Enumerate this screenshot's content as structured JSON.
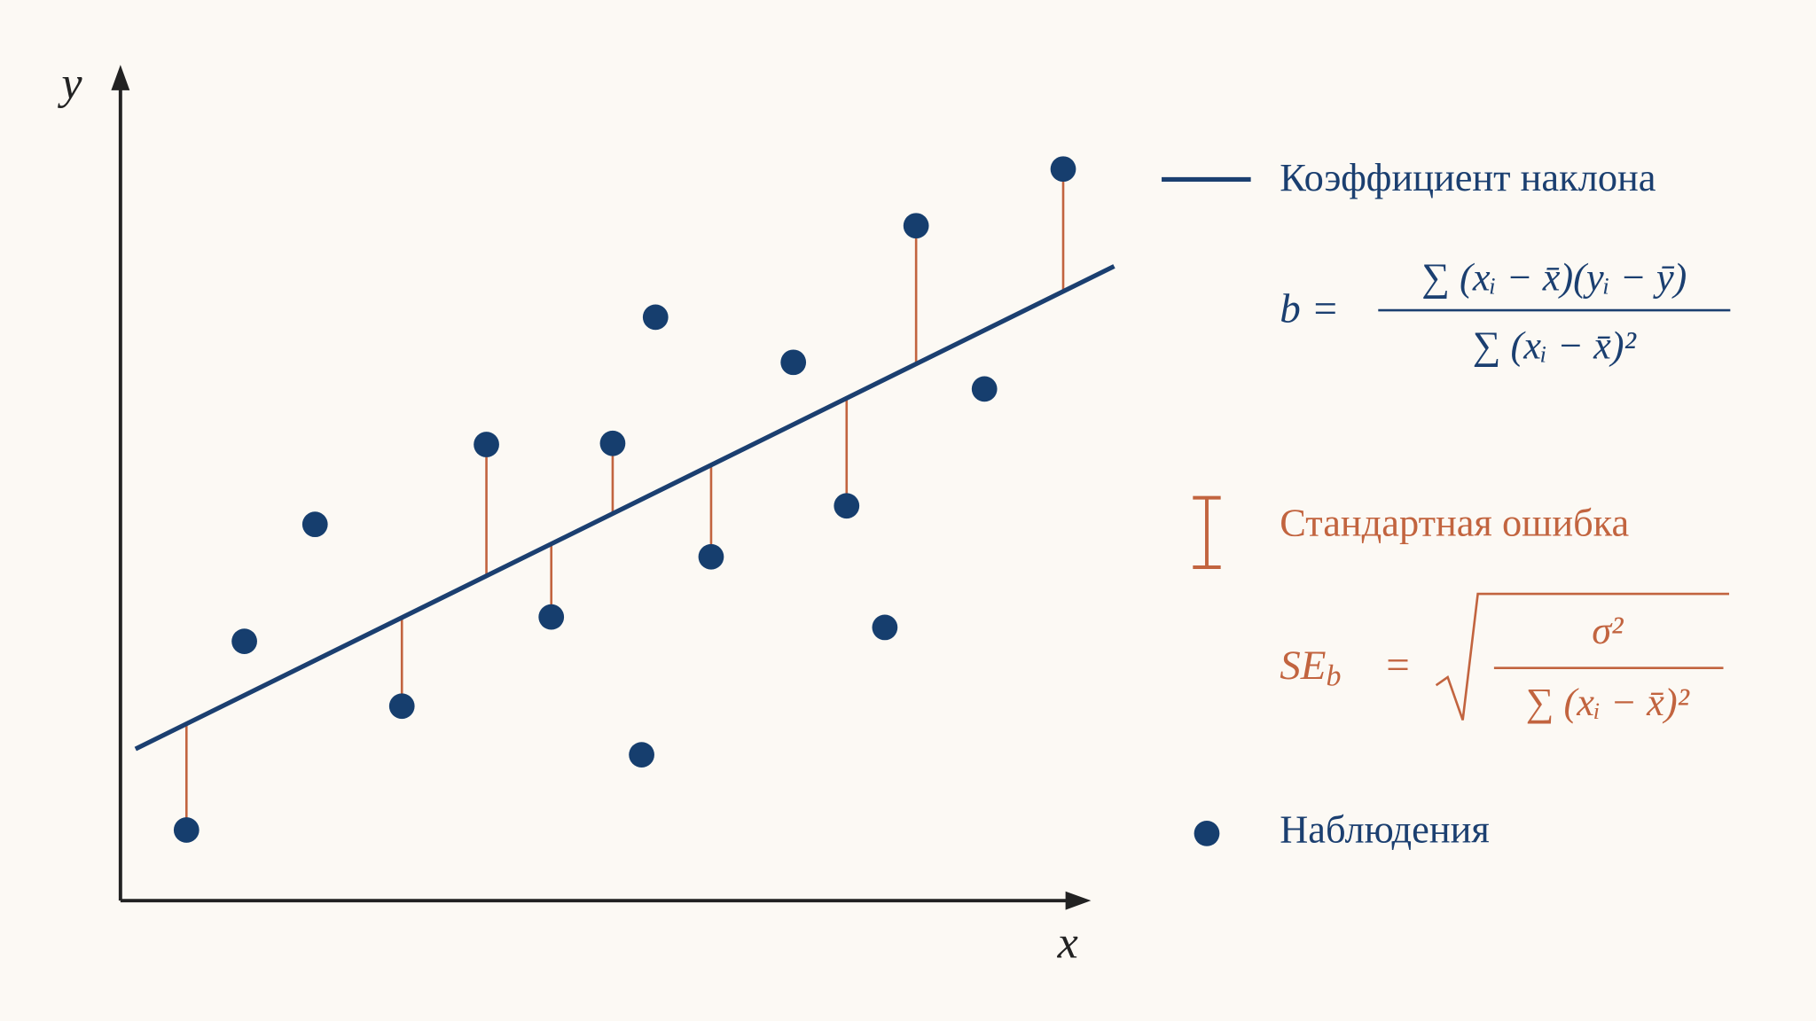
{
  "axes": {
    "y_label": "y",
    "x_label": "x"
  },
  "legend": {
    "slope": {
      "label": "Коэффициент наклона",
      "lhs": "b =",
      "numerator": "∑ (xᵢ − x̄)(yᵢ − ȳ)",
      "denominator": "∑ (xᵢ − x̄)²"
    },
    "standard_error": {
      "label": "Стандартная ошибка",
      "lhs": "SE",
      "lhs_subscript": "b",
      "equals": "=",
      "numerator": "σ²",
      "denominator": "∑ (xᵢ − x̄)²"
    },
    "observations": {
      "label": "Наблюдения"
    }
  }
}
